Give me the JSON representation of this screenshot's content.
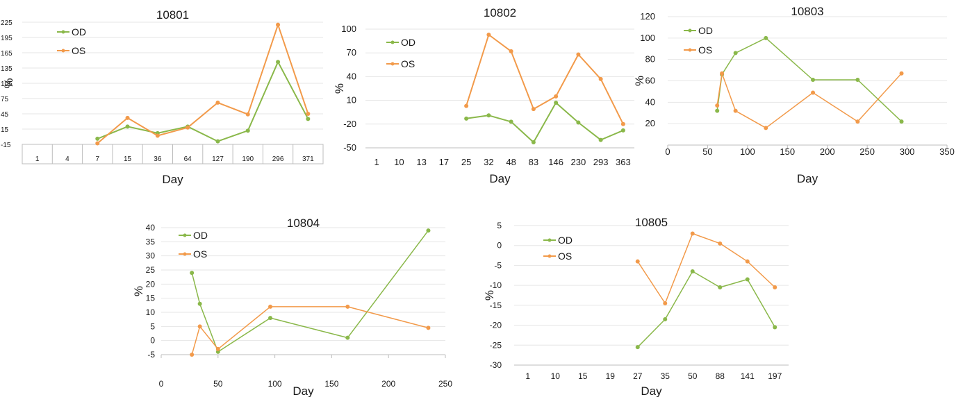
{
  "colors": {
    "od": "#8ab84a",
    "os": "#f29a4a",
    "axis": "#bdbdbd",
    "grid": "#e6e6e6",
    "text": "#1a1a1a"
  },
  "chart_data": [
    {
      "type": "line",
      "title": "10801",
      "xlabel": "Day",
      "ylabel": "%",
      "categories": [
        "1",
        "4",
        "7",
        "15",
        "36",
        "64",
        "127",
        "190",
        "296",
        "371"
      ],
      "yticks": [
        "-15",
        "15",
        "45",
        "75",
        "105",
        "135",
        "165",
        "195",
        "225"
      ],
      "ylim": [
        -15,
        225
      ],
      "grid": true,
      "legend": "top-left",
      "series": [
        {
          "name": "OD",
          "values": [
            null,
            null,
            -4,
            20,
            7,
            20,
            -9,
            12,
            147,
            35
          ]
        },
        {
          "name": "OS",
          "values": [
            null,
            null,
            -13,
            37,
            2,
            18,
            67,
            44,
            220,
            45
          ]
        }
      ]
    },
    {
      "type": "line",
      "title": "10802",
      "xlabel": "Day",
      "ylabel": "%",
      "categories": [
        "1",
        "10",
        "13",
        "17",
        "25",
        "32",
        "48",
        "83",
        "146",
        "230",
        "293",
        "363"
      ],
      "yticks": [
        "-50",
        "-20",
        "10",
        "40",
        "70",
        "100"
      ],
      "ylim": [
        -50,
        100
      ],
      "grid": true,
      "legend": "top-left",
      "series": [
        {
          "name": "OD",
          "values": [
            null,
            null,
            null,
            null,
            -13,
            -9,
            -17,
            -43,
            7,
            -18,
            -40,
            -28
          ]
        },
        {
          "name": "OS",
          "values": [
            null,
            null,
            null,
            null,
            3,
            93,
            72,
            -1,
            15,
            68,
            37,
            -20
          ]
        }
      ]
    },
    {
      "type": "scatter",
      "title": "10803",
      "xlabel": "Day",
      "ylabel": "%",
      "xticks": [
        "0",
        "50",
        "100",
        "150",
        "200",
        "250",
        "300",
        "350"
      ],
      "yticks": [
        "20",
        "40",
        "60",
        "80",
        "100",
        "120"
      ],
      "xlim": [
        0,
        350
      ],
      "ylim": [
        0,
        120
      ],
      "grid": true,
      "legend": "top-left",
      "series": [
        {
          "name": "OD",
          "points": [
            [
              62,
              32
            ],
            [
              68,
              66
            ],
            [
              85,
              86
            ],
            [
              123,
              100
            ],
            [
              182,
              61
            ],
            [
              238,
              61
            ],
            [
              293,
              22
            ]
          ]
        },
        {
          "name": "OS",
          "points": [
            [
              62,
              37
            ],
            [
              68,
              67
            ],
            [
              85,
              32
            ],
            [
              123,
              16
            ],
            [
              182,
              49
            ],
            [
              238,
              22
            ],
            [
              293,
              67
            ]
          ]
        }
      ]
    },
    {
      "type": "scatter",
      "title": "10804",
      "xlabel": "Day",
      "ylabel": "%",
      "xticks": [
        "0",
        "50",
        "100",
        "150",
        "200",
        "250"
      ],
      "yticks": [
        "-5",
        "0",
        "5",
        "10",
        "15",
        "20",
        "25",
        "30",
        "35",
        "40"
      ],
      "xlim": [
        0,
        250
      ],
      "ylim": [
        -5,
        40
      ],
      "grid": true,
      "legend": "top-left",
      "series": [
        {
          "name": "OD",
          "points": [
            [
              27,
              24
            ],
            [
              34,
              13
            ],
            [
              50,
              -4
            ],
            [
              96,
              8
            ],
            [
              164,
              1
            ],
            [
              235,
              39
            ]
          ]
        },
        {
          "name": "OS",
          "points": [
            [
              27,
              -5
            ],
            [
              34,
              5
            ],
            [
              50,
              -3
            ],
            [
              96,
              12
            ],
            [
              164,
              12
            ],
            [
              235,
              4.5
            ]
          ]
        }
      ]
    },
    {
      "type": "line",
      "title": "10805",
      "xlabel": "Day",
      "ylabel": "%",
      "categories": [
        "1",
        "10",
        "15",
        "19",
        "27",
        "35",
        "50",
        "88",
        "141",
        "197"
      ],
      "yticks": [
        "-30",
        "-25",
        "-20",
        "-15",
        "-10",
        "-5",
        "0",
        "5"
      ],
      "ylim": [
        -30,
        5
      ],
      "grid": true,
      "legend": "top-left",
      "series": [
        {
          "name": "OD",
          "values": [
            null,
            null,
            null,
            null,
            -25.5,
            -18.5,
            -6.5,
            -10.5,
            -8.5,
            -20.5
          ]
        },
        {
          "name": "OS",
          "values": [
            null,
            null,
            null,
            null,
            -4,
            -14.5,
            3,
            0.5,
            -4,
            -10.5
          ]
        }
      ]
    }
  ]
}
